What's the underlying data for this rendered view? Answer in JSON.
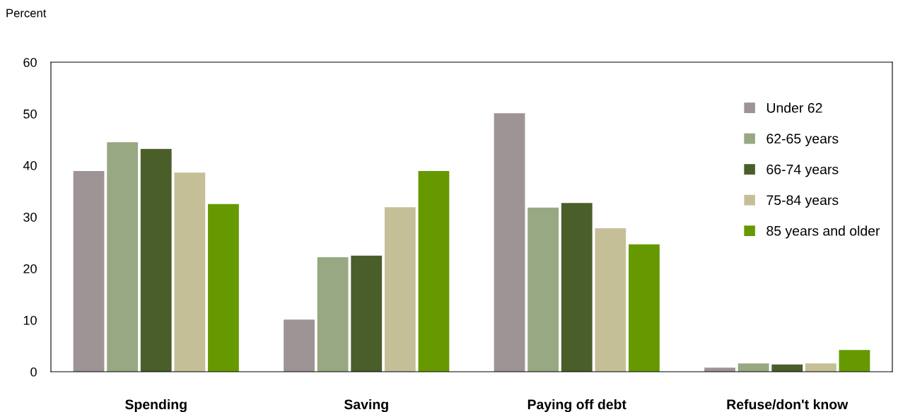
{
  "chart_data": {
    "type": "bar",
    "ylabel": "Percent",
    "categories": [
      "Spending",
      "Saving",
      "Paying off debt",
      "Refuse/don't know"
    ],
    "series": [
      {
        "name": "Under 62",
        "color": "#9e9496",
        "values": [
          38.9,
          10.1,
          50.1,
          0.8
        ]
      },
      {
        "name": "62-65 years",
        "color": "#98a882",
        "values": [
          44.5,
          22.2,
          31.8,
          1.6
        ]
      },
      {
        "name": "66-74 years",
        "color": "#4a5e2a",
        "values": [
          43.2,
          22.5,
          32.7,
          1.4
        ]
      },
      {
        "name": "75-84 years",
        "color": "#c5bf98",
        "values": [
          38.6,
          31.9,
          27.8,
          1.6
        ]
      },
      {
        "name": "85 years and older",
        "color": "#669900",
        "values": [
          32.5,
          38.9,
          24.7,
          4.2
        ]
      }
    ],
    "ylim": [
      0,
      60
    ],
    "yticks": [
      0,
      10,
      20,
      30,
      40,
      50,
      60
    ],
    "grid": false,
    "legend": "right"
  }
}
